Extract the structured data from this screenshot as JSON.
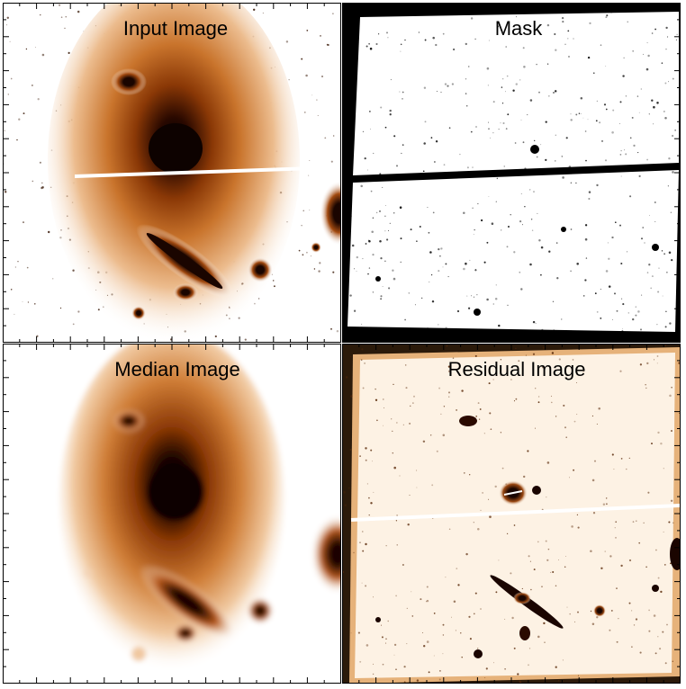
{
  "panels": [
    {
      "title": "Input Image"
    },
    {
      "title": "Mask"
    },
    {
      "title": "Median Image"
    },
    {
      "title": "Residual Image"
    }
  ]
}
